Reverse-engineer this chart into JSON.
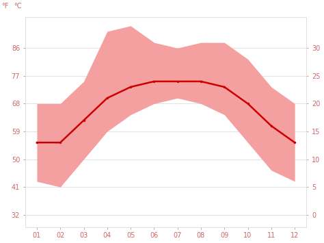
{
  "months": [
    1,
    2,
    3,
    4,
    5,
    6,
    7,
    8,
    9,
    10,
    11,
    12
  ],
  "avg_temp_f": [
    55.4,
    55.4,
    62.6,
    69.8,
    73.4,
    75.2,
    75.2,
    75.2,
    73.4,
    68.0,
    60.8,
    55.4
  ],
  "max_temp_f": [
    68.0,
    68.0,
    75.2,
    91.4,
    93.2,
    87.8,
    86.0,
    87.8,
    87.8,
    82.4,
    73.4,
    68.0
  ],
  "min_temp_f": [
    42.8,
    41.0,
    50.0,
    59.0,
    64.4,
    68.0,
    69.8,
    68.0,
    64.4,
    55.4,
    46.4,
    42.8
  ],
  "yticks_f": [
    32,
    41,
    50,
    59,
    68,
    77,
    86
  ],
  "yticks_c": [
    0,
    5,
    10,
    15,
    20,
    25,
    30
  ],
  "ylim_f": [
    28,
    96
  ],
  "xlim": [
    0.5,
    12.5
  ],
  "line_color": "#cc0000",
  "fill_color": "#f4a0a0",
  "grid_color": "#dddddd",
  "tick_color": "#cc6666",
  "bg_color": "#ffffff",
  "spine_color": "#dddddd"
}
